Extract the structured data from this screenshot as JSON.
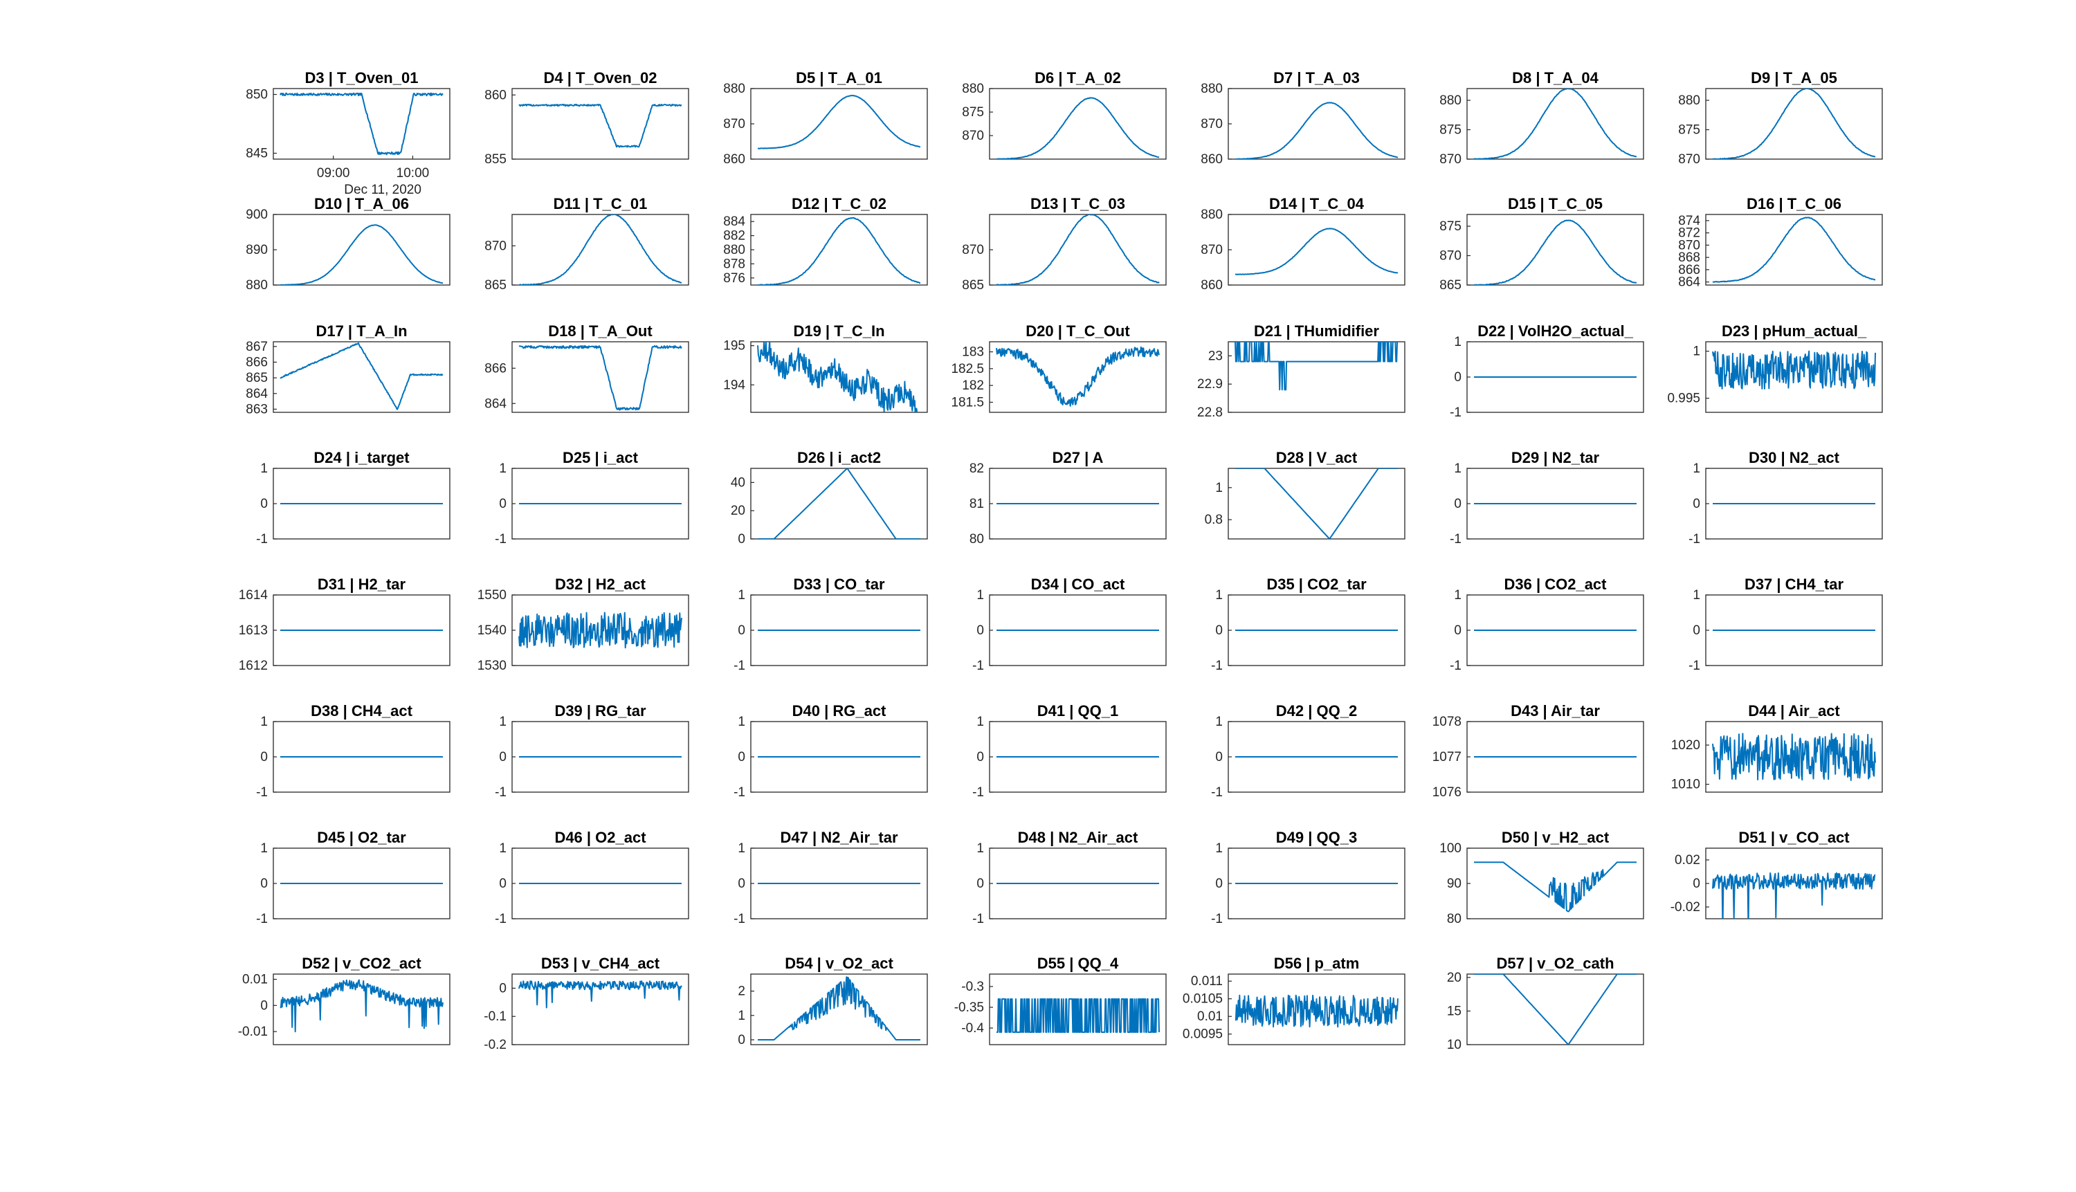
{
  "figure": {
    "background": "#ffffff",
    "line_color": "#0072bd",
    "axis_color": "#262626"
  },
  "chart_data": [
    {
      "title": "D3 | T_Oven_01",
      "type": "line",
      "yticks": [
        "850",
        "845"
      ],
      "ylim": [
        844.5,
        850.5
      ],
      "xticks": [
        "09:00",
        "10:00"
      ],
      "xlabel": "Dec 11, 2020",
      "shape": {
        "kind": "plateau_dip",
        "base": 850,
        "low": 845,
        "thick": true
      }
    },
    {
      "title": "D4 | T_Oven_02",
      "type": "line",
      "yticks": [
        "860",
        "855"
      ],
      "ylim": [
        855,
        860.5
      ],
      "shape": {
        "kind": "plateau_dip",
        "base": 859.2,
        "low": 856,
        "thick": true
      }
    },
    {
      "title": "D5 | T_A_01",
      "type": "line",
      "yticks": [
        "880",
        "870",
        "860"
      ],
      "ylim": [
        860,
        880
      ],
      "shape": {
        "kind": "peak",
        "base": 863,
        "peak": 878
      }
    },
    {
      "title": "D6 | T_A_02",
      "type": "line",
      "yticks": [
        "880",
        "875",
        "870"
      ],
      "ylim": [
        865,
        880
      ],
      "shape": {
        "kind": "peak",
        "base": 865,
        "peak": 878
      }
    },
    {
      "title": "D7 | T_A_03",
      "type": "line",
      "yticks": [
        "880",
        "870",
        "860"
      ],
      "ylim": [
        860,
        880
      ],
      "shape": {
        "kind": "peak",
        "base": 860,
        "peak": 876
      }
    },
    {
      "title": "D8 | T_A_04",
      "type": "line",
      "yticks": [
        "880",
        "875",
        "870"
      ],
      "ylim": [
        870,
        882
      ],
      "shape": {
        "kind": "peak",
        "base": 870,
        "peak": 882
      }
    },
    {
      "title": "D9 | T_A_05",
      "type": "line",
      "yticks": [
        "880",
        "875",
        "870"
      ],
      "ylim": [
        870,
        882
      ],
      "shape": {
        "kind": "peak",
        "base": 870,
        "peak": 882
      }
    },
    {
      "title": "D10 | T_A_06",
      "type": "line",
      "yticks": [
        "900",
        "890",
        "880"
      ],
      "ylim": [
        880,
        900
      ],
      "shape": {
        "kind": "peak",
        "base": 880,
        "peak": 897
      }
    },
    {
      "title": "D11 | T_C_01",
      "type": "line",
      "yticks": [
        "870",
        "865"
      ],
      "ylim": [
        865,
        874
      ],
      "shape": {
        "kind": "peak",
        "base": 865,
        "peak": 874
      }
    },
    {
      "title": "D12 | T_C_02",
      "type": "line",
      "yticks": [
        "884",
        "882",
        "880",
        "878",
        "876"
      ],
      "ylim": [
        875,
        885
      ],
      "shape": {
        "kind": "peak",
        "base": 875,
        "peak": 884.5
      }
    },
    {
      "title": "D13 | T_C_03",
      "type": "line",
      "yticks": [
        "870",
        "865"
      ],
      "ylim": [
        865,
        875
      ],
      "shape": {
        "kind": "peak",
        "base": 865,
        "peak": 875
      }
    },
    {
      "title": "D14 | T_C_04",
      "type": "line",
      "yticks": [
        "880",
        "870",
        "860"
      ],
      "ylim": [
        860,
        880
      ],
      "shape": {
        "kind": "peak",
        "base": 863,
        "peak": 876
      }
    },
    {
      "title": "D15 | T_C_05",
      "type": "line",
      "yticks": [
        "875",
        "870",
        "865"
      ],
      "ylim": [
        865,
        877
      ],
      "shape": {
        "kind": "peak",
        "base": 865,
        "peak": 876
      }
    },
    {
      "title": "D16 | T_C_06",
      "type": "line",
      "yticks": [
        "874",
        "872",
        "870",
        "868",
        "866",
        "864"
      ],
      "ylim": [
        863.5,
        875
      ],
      "shape": {
        "kind": "peak",
        "base": 864,
        "peak": 874.5
      }
    },
    {
      "title": "D17 | T_A_In",
      "type": "line",
      "yticks": [
        "867",
        "866",
        "865",
        "864",
        "863"
      ],
      "ylim": [
        862.8,
        867.3
      ],
      "shape": {
        "kind": "ramp_dip",
        "start": 865,
        "top": 867.2,
        "low": 863,
        "end": 865.2
      }
    },
    {
      "title": "D18 | T_A_Out",
      "type": "line",
      "yticks": [
        "866",
        "864"
      ],
      "ylim": [
        863.5,
        867.5
      ],
      "shape": {
        "kind": "plateau_dip",
        "base": 867.2,
        "low": 863.7,
        "thick": true
      }
    },
    {
      "title": "D19 | T_C_In",
      "type": "line",
      "yticks": [
        "195",
        "194"
      ],
      "ylim": [
        193.3,
        195.1
      ],
      "shape": {
        "kind": "wander",
        "start": 194.8,
        "end": 193.5,
        "noise": 0.3,
        "seed": 19
      }
    },
    {
      "title": "D20 | T_C_Out",
      "type": "line",
      "yticks": [
        "183",
        "182.5",
        "182",
        "181.5"
      ],
      "ylim": [
        181.2,
        183.3
      ],
      "shape": {
        "kind": "wander_dip",
        "base": 183,
        "low": 181.5,
        "noise": 0.15,
        "seed": 20
      }
    },
    {
      "title": "D21 | THumidifier",
      "type": "line",
      "yticks": [
        "23",
        "22.9",
        "22.8"
      ],
      "ylim": [
        22.8,
        23.05
      ],
      "shape": {
        "kind": "toggle",
        "hi": 23.05,
        "mid": 22.98,
        "lo": 22.88
      }
    },
    {
      "title": "D22 | VolH2O_actual_",
      "type": "line",
      "yticks": [
        "1",
        "0",
        "-1"
      ],
      "ylim": [
        -1,
        1
      ],
      "shape": {
        "kind": "flat",
        "value": 0
      }
    },
    {
      "title": "D23 | pHum_actual_",
      "type": "line",
      "yticks": [
        "1",
        "0.995"
      ],
      "ylim": [
        0.9935,
        1.001
      ],
      "shape": {
        "kind": "band",
        "center": 0.998,
        "amp": 0.002,
        "thick": true
      }
    },
    {
      "title": "D24 | i_target",
      "type": "line",
      "yticks": [
        "1",
        "0",
        "-1"
      ],
      "ylim": [
        -1,
        1
      ],
      "shape": {
        "kind": "flat",
        "value": 0
      }
    },
    {
      "title": "D25 | i_act",
      "type": "line",
      "yticks": [
        "1",
        "0",
        "-1"
      ],
      "ylim": [
        -1,
        1
      ],
      "shape": {
        "kind": "flat",
        "value": 0
      }
    },
    {
      "title": "D26 | i_act2",
      "type": "line",
      "yticks": [
        "40",
        "20",
        "0"
      ],
      "ylim": [
        0,
        50
      ],
      "shape": {
        "kind": "triangle",
        "base": 0,
        "peak": 50
      }
    },
    {
      "title": "D27 | A",
      "type": "line",
      "yticks": [
        "82",
        "81",
        "80"
      ],
      "ylim": [
        80,
        82
      ],
      "shape": {
        "kind": "flat",
        "value": 81
      }
    },
    {
      "title": "D28 | V_act",
      "type": "line",
      "yticks": [
        "1",
        "0.8"
      ],
      "ylim": [
        0.68,
        1.12
      ],
      "shape": {
        "kind": "vdip",
        "start": 1.12,
        "low": 0.68,
        "end": 1.12
      }
    },
    {
      "title": "D29 | N2_tar",
      "type": "line",
      "yticks": [
        "1",
        "0",
        "-1"
      ],
      "ylim": [
        -1,
        1
      ],
      "shape": {
        "kind": "flat",
        "value": 0
      }
    },
    {
      "title": "D30 | N2_act",
      "type": "line",
      "yticks": [
        "1",
        "0",
        "-1"
      ],
      "ylim": [
        -1,
        1
      ],
      "shape": {
        "kind": "flat",
        "value": 0
      }
    },
    {
      "title": "D31 | H2_tar",
      "type": "line",
      "yticks": [
        "1614",
        "1613",
        "1612"
      ],
      "ylim": [
        1612,
        1614
      ],
      "shape": {
        "kind": "flat",
        "value": 1613
      }
    },
    {
      "title": "D32 | H2_act",
      "type": "line",
      "yticks": [
        "1550",
        "1540",
        "1530"
      ],
      "ylim": [
        1530,
        1550
      ],
      "shape": {
        "kind": "band",
        "center": 1540,
        "amp": 5,
        "thick": true
      }
    },
    {
      "title": "D33 | CO_tar",
      "type": "line",
      "yticks": [
        "1",
        "0",
        "-1"
      ],
      "ylim": [
        -1,
        1
      ],
      "shape": {
        "kind": "flat",
        "value": 0
      }
    },
    {
      "title": "D34 | CO_act",
      "type": "line",
      "yticks": [
        "1",
        "0",
        "-1"
      ],
      "ylim": [
        -1,
        1
      ],
      "shape": {
        "kind": "flat",
        "value": 0
      }
    },
    {
      "title": "D35 | CO2_tar",
      "type": "line",
      "yticks": [
        "1",
        "0",
        "-1"
      ],
      "ylim": [
        -1,
        1
      ],
      "shape": {
        "kind": "flat",
        "value": 0
      }
    },
    {
      "title": "D36 | CO2_act",
      "type": "line",
      "yticks": [
        "1",
        "0",
        "-1"
      ],
      "ylim": [
        -1,
        1
      ],
      "shape": {
        "kind": "flat",
        "value": 0
      }
    },
    {
      "title": "D37 | CH4_tar",
      "type": "line",
      "yticks": [
        "1",
        "0",
        "-1"
      ],
      "ylim": [
        -1,
        1
      ],
      "shape": {
        "kind": "flat",
        "value": 0
      }
    },
    {
      "title": "D38 | CH4_act",
      "type": "line",
      "yticks": [
        "1",
        "0",
        "-1"
      ],
      "ylim": [
        -1,
        1
      ],
      "shape": {
        "kind": "flat",
        "value": 0
      }
    },
    {
      "title": "D39 | RG_tar",
      "type": "line",
      "yticks": [
        "1",
        "0",
        "-1"
      ],
      "ylim": [
        -1,
        1
      ],
      "shape": {
        "kind": "flat",
        "value": 0
      }
    },
    {
      "title": "D40 | RG_act",
      "type": "line",
      "yticks": [
        "1",
        "0",
        "-1"
      ],
      "ylim": [
        -1,
        1
      ],
      "shape": {
        "kind": "flat",
        "value": 0
      }
    },
    {
      "title": "D41 | QQ_1",
      "type": "line",
      "yticks": [
        "1",
        "0",
        "-1"
      ],
      "ylim": [
        -1,
        1
      ],
      "shape": {
        "kind": "flat",
        "value": 0
      }
    },
    {
      "title": "D42 | QQ_2",
      "type": "line",
      "yticks": [
        "1",
        "0",
        "-1"
      ],
      "ylim": [
        -1,
        1
      ],
      "shape": {
        "kind": "flat",
        "value": 0
      }
    },
    {
      "title": "D43 | Air_tar",
      "type": "line",
      "yticks": [
        "1078",
        "1077",
        "1076"
      ],
      "ylim": [
        1076,
        1078
      ],
      "shape": {
        "kind": "flat",
        "value": 1077
      }
    },
    {
      "title": "D44 | Air_act",
      "type": "line",
      "yticks": [
        "1020",
        "1010"
      ],
      "ylim": [
        1008,
        1026
      ],
      "shape": {
        "kind": "band",
        "center": 1017,
        "amp": 6,
        "thick": true
      }
    },
    {
      "title": "D45 | O2_tar",
      "type": "line",
      "yticks": [
        "1",
        "0",
        "-1"
      ],
      "ylim": [
        -1,
        1
      ],
      "shape": {
        "kind": "flat",
        "value": 0
      }
    },
    {
      "title": "D46 | O2_act",
      "type": "line",
      "yticks": [
        "1",
        "0",
        "-1"
      ],
      "ylim": [
        -1,
        1
      ],
      "shape": {
        "kind": "flat",
        "value": 0
      }
    },
    {
      "title": "D47 | N2_Air_tar",
      "type": "line",
      "yticks": [
        "1",
        "0",
        "-1"
      ],
      "ylim": [
        -1,
        1
      ],
      "shape": {
        "kind": "flat",
        "value": 0
      }
    },
    {
      "title": "D48 | N2_Air_act",
      "type": "line",
      "yticks": [
        "1",
        "0",
        "-1"
      ],
      "ylim": [
        -1,
        1
      ],
      "shape": {
        "kind": "flat",
        "value": 0
      }
    },
    {
      "title": "D49 | QQ_3",
      "type": "line",
      "yticks": [
        "1",
        "0",
        "-1"
      ],
      "ylim": [
        -1,
        1
      ],
      "shape": {
        "kind": "flat",
        "value": 0
      }
    },
    {
      "title": "D50 | v_H2_act",
      "type": "line",
      "yticks": [
        "100",
        "90",
        "80"
      ],
      "ylim": [
        80,
        100
      ],
      "shape": {
        "kind": "vdip",
        "start": 96,
        "low": 82,
        "end": 96,
        "fan": true
      }
    },
    {
      "title": "D51 | v_CO_act",
      "type": "line",
      "yticks": [
        "0.02",
        "0",
        "-0.02"
      ],
      "ylim": [
        -0.03,
        0.03
      ],
      "shape": {
        "kind": "band",
        "center": 0.002,
        "amp": 0.007,
        "spikes": true
      }
    },
    {
      "title": "D52 | v_CO2_act",
      "type": "line",
      "yticks": [
        "0.01",
        "0",
        "-0.01"
      ],
      "ylim": [
        -0.015,
        0.012
      ],
      "shape": {
        "kind": "noisy_hump",
        "base": 0.001,
        "peak": 0.008,
        "amp": 0.002
      }
    },
    {
      "title": "D53 | v_CH4_act",
      "type": "line",
      "yticks": [
        "0",
        "-0.1",
        "-0.2"
      ],
      "ylim": [
        -0.2,
        0.05
      ],
      "shape": {
        "kind": "band",
        "center": 0.01,
        "amp": 0.015,
        "spikes": true
      }
    },
    {
      "title": "D54 | v_O2_act",
      "type": "line",
      "yticks": [
        "2",
        "1",
        "0"
      ],
      "ylim": [
        -0.2,
        2.7
      ],
      "shape": {
        "kind": "triangle",
        "base": 0,
        "peak": 2.6,
        "fan": true
      }
    },
    {
      "title": "D55 | QQ_4",
      "type": "line",
      "yticks": [
        "-0.3",
        "-0.35",
        "-0.4"
      ],
      "ylim": [
        -0.44,
        -0.27
      ],
      "shape": {
        "kind": "bars",
        "hi": -0.33,
        "lo": -0.41
      }
    },
    {
      "title": "D56 | p_atm",
      "type": "line",
      "yticks": [
        "0.011",
        "0.0105",
        "0.01",
        "0.0095"
      ],
      "ylim": [
        0.0092,
        0.0112
      ],
      "shape": {
        "kind": "band",
        "center": 0.01015,
        "amp": 0.00045,
        "thick": true
      }
    },
    {
      "title": "D57 | v_O2_cath",
      "type": "line",
      "yticks": [
        "20",
        "15",
        "10"
      ],
      "ylim": [
        10,
        20.5
      ],
      "shape": {
        "kind": "vdip",
        "start": 20.5,
        "low": 10,
        "end": 20.2
      }
    }
  ]
}
